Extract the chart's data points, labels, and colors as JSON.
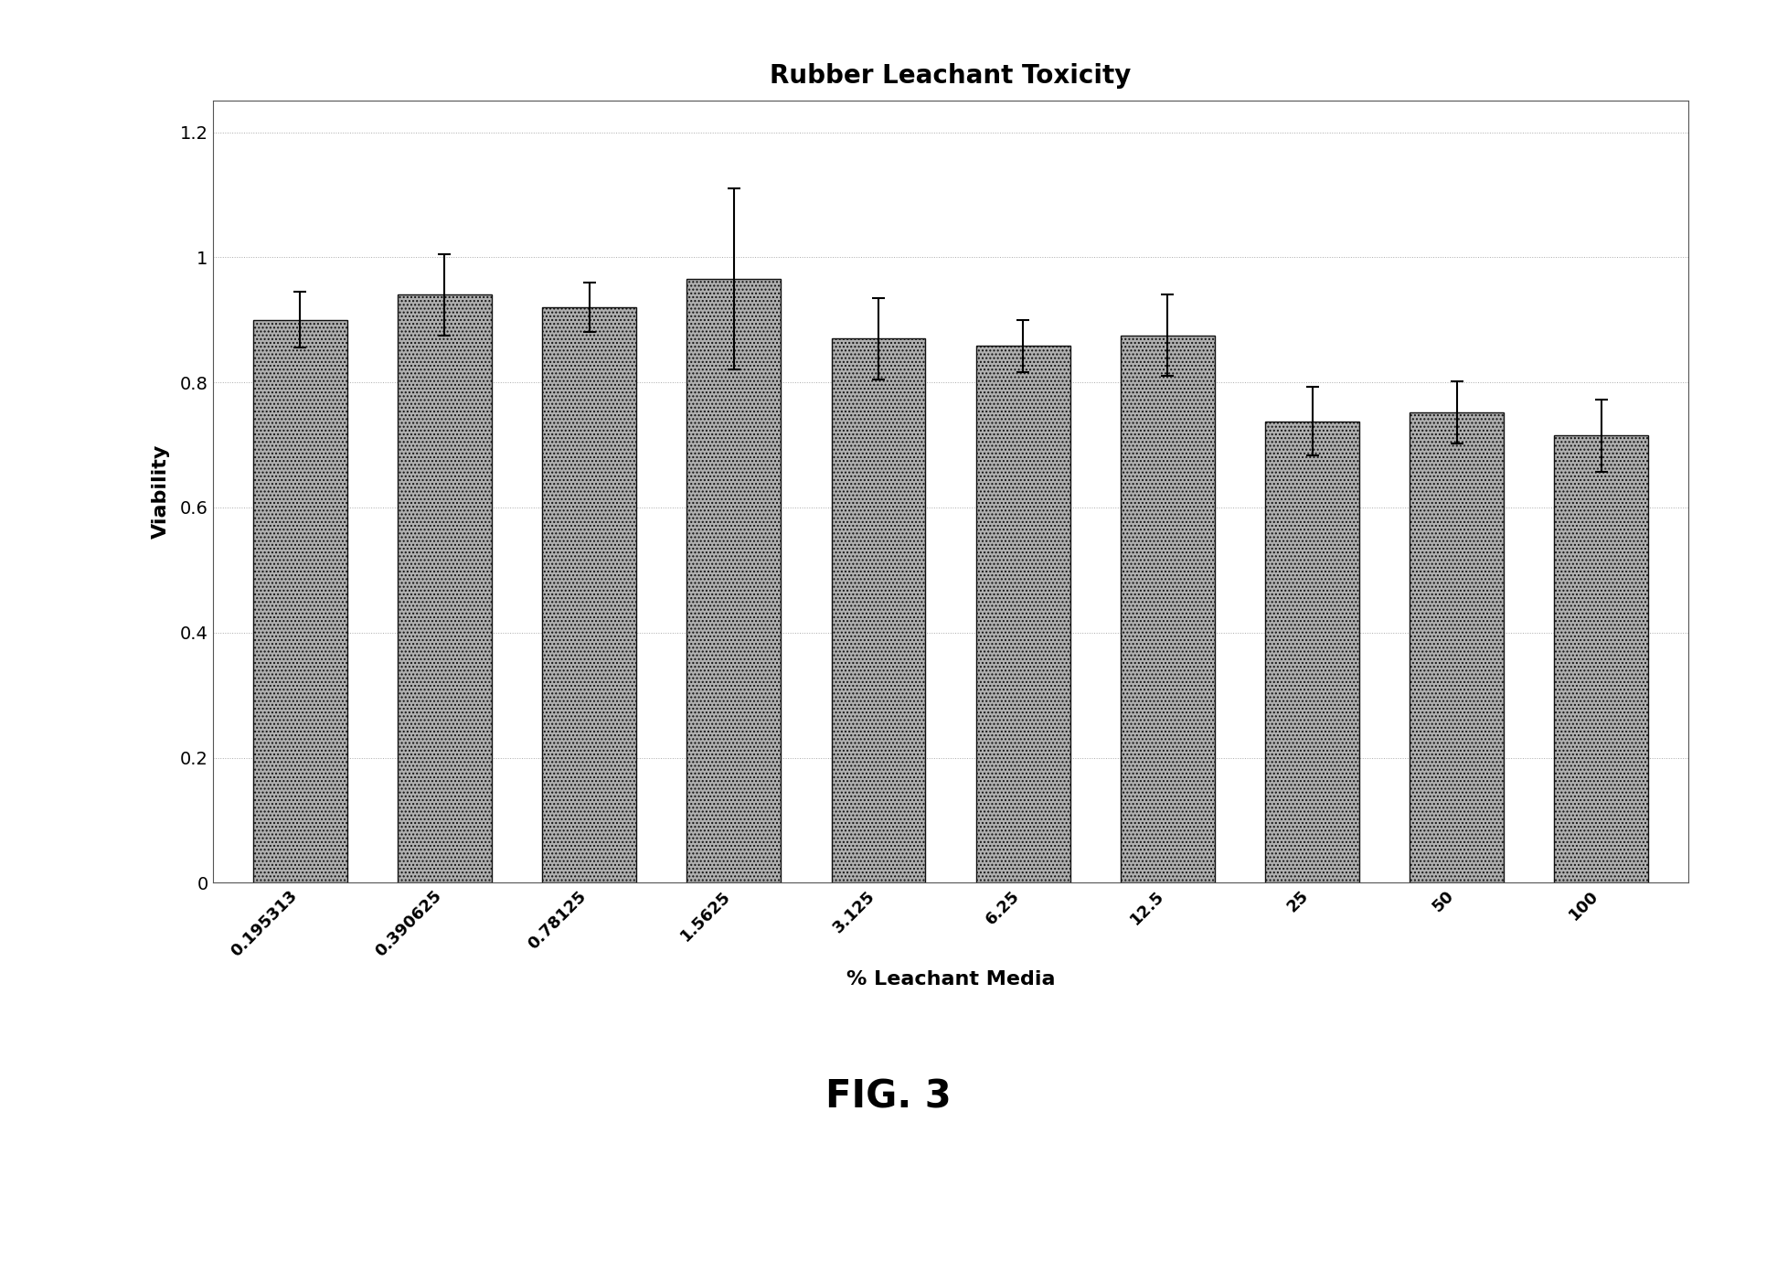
{
  "title": "Rubber Leachant Toxicity",
  "xlabel": "% Leachant Media",
  "ylabel": "Viability",
  "categories": [
    "0.195313",
    "0.390625",
    "0.78125",
    "1.5625",
    "3.125",
    "6.25",
    "12.5",
    "25",
    "50",
    "100"
  ],
  "values": [
    0.9,
    0.94,
    0.92,
    0.965,
    0.87,
    0.858,
    0.875,
    0.738,
    0.752,
    0.715
  ],
  "errors": [
    0.045,
    0.065,
    0.04,
    0.145,
    0.065,
    0.042,
    0.065,
    0.055,
    0.05,
    0.058
  ],
  "ylim": [
    0,
    1.25
  ],
  "yticks": [
    0,
    0.2,
    0.4,
    0.6,
    0.8,
    1.0,
    1.2
  ],
  "ytick_labels": [
    "0",
    "0.2",
    "0.4",
    "0.6",
    "0.8",
    "1",
    "1.2"
  ],
  "bar_facecolor": "#999999",
  "bar_edgecolor": "#111111",
  "title_fontsize": 20,
  "axis_label_fontsize": 16,
  "tick_fontsize": 13,
  "figure_caption": "FIG. 3",
  "fig_width": 19.44,
  "fig_height": 13.79,
  "dpi": 100
}
